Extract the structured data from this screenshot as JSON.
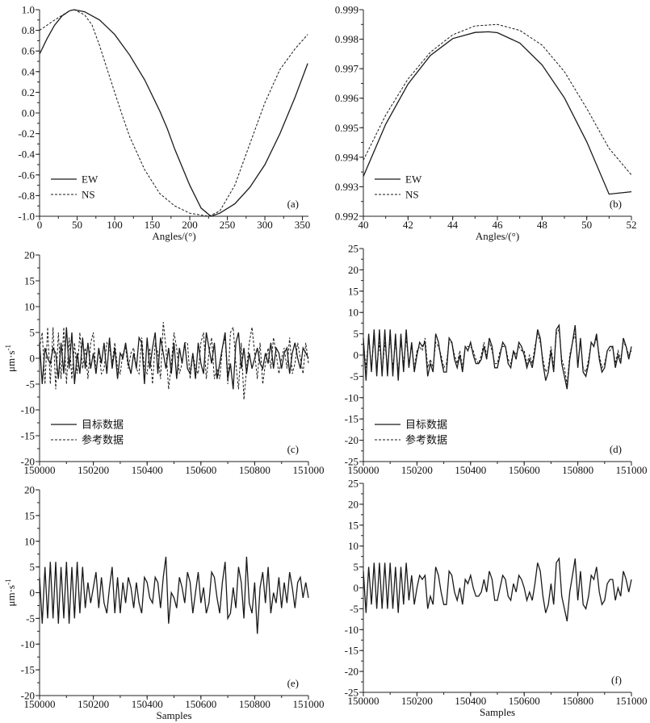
{
  "chart_data": [
    {
      "id": "a",
      "type": "line",
      "panel_label": "(a)",
      "xlabel": "Angles/(°)",
      "ylabel": "",
      "xlim": [
        0,
        358
      ],
      "ylim": [
        -1.0,
        1.0
      ],
      "xticks": [
        0,
        50,
        100,
        150,
        200,
        250,
        300,
        350
      ],
      "xminor": 25,
      "yticks": [
        -1.0,
        -0.8,
        -0.6,
        -0.4,
        -0.2,
        0.0,
        0.2,
        0.4,
        0.6,
        0.8,
        1.0
      ],
      "yminor": 0.1,
      "ydec": 1,
      "legend": "bottom-left",
      "series": [
        {
          "name": "EW",
          "style": "solid",
          "x": [
            0,
            10,
            20,
            30,
            40,
            46,
            60,
            80,
            100,
            120,
            140,
            160,
            170,
            180,
            200,
            215,
            228,
            240,
            260,
            280,
            300,
            320,
            340,
            357
          ],
          "y": [
            0.57,
            0.72,
            0.85,
            0.94,
            0.99,
            1.0,
            0.98,
            0.9,
            0.76,
            0.56,
            0.32,
            0.02,
            -0.15,
            -0.35,
            -0.7,
            -0.92,
            -1.0,
            -0.97,
            -0.88,
            -0.72,
            -0.5,
            -0.2,
            0.15,
            0.48
          ]
        },
        {
          "name": "NS",
          "style": "dashed",
          "x": [
            0,
            20,
            40,
            46,
            60,
            70,
            80,
            100,
            110,
            120,
            140,
            160,
            180,
            200,
            225,
            240,
            260,
            280,
            300,
            320,
            340,
            357
          ],
          "y": [
            0.8,
            0.9,
            0.99,
            1.0,
            0.95,
            0.85,
            0.65,
            0.2,
            -0.02,
            -0.23,
            -0.55,
            -0.78,
            -0.9,
            -0.97,
            -1.0,
            -0.95,
            -0.7,
            -0.3,
            0.1,
            0.42,
            0.62,
            0.76
          ]
        }
      ]
    },
    {
      "id": "b",
      "type": "line",
      "panel_label": "(b)",
      "xlabel": "Angles/(°)",
      "ylabel": "",
      "xlim": [
        40,
        52
      ],
      "ylim": [
        0.992,
        0.999
      ],
      "xticks": [
        40,
        42,
        44,
        46,
        48,
        50,
        52
      ],
      "xminor": 1,
      "yticks": [
        0.992,
        0.993,
        0.994,
        0.995,
        0.996,
        0.997,
        0.998,
        0.999
      ],
      "yminor": 0.0005,
      "ydec": 3,
      "legend": "bottom-left",
      "series": [
        {
          "name": "EW",
          "style": "solid",
          "x": [
            40,
            41,
            42,
            43,
            44,
            45,
            45.6,
            46,
            47,
            48,
            49,
            50,
            51,
            52
          ],
          "y": [
            0.99335,
            0.99512,
            0.99648,
            0.99745,
            0.99802,
            0.99823,
            0.99825,
            0.99822,
            0.99787,
            0.99713,
            0.99601,
            0.99452,
            0.99275,
            0.99283
          ]
        },
        {
          "name": "NS",
          "style": "dashed",
          "x": [
            40,
            41,
            42,
            43,
            44,
            45,
            46,
            47,
            48,
            49,
            50,
            51,
            52
          ],
          "y": [
            0.9939,
            0.99543,
            0.99665,
            0.99756,
            0.99815,
            0.99845,
            0.9985,
            0.9983,
            0.9978,
            0.9969,
            0.99565,
            0.9943,
            0.9934
          ]
        }
      ]
    },
    {
      "id": "c",
      "type": "line",
      "panel_label": "(c)",
      "xlabel": "",
      "ylabel": "μm·s",
      "ylabel_sup": "-1",
      "xlim": [
        150000,
        151000
      ],
      "ylim": [
        -20,
        20
      ],
      "xticks": [
        150000,
        150200,
        150400,
        150600,
        150800,
        151000
      ],
      "xminor": 100,
      "yticks": [
        -20,
        -15,
        -10,
        -5,
        0,
        5,
        10,
        15,
        20
      ],
      "yminor": 2.5,
      "ydec": 0,
      "legend": "bottom-left",
      "x_start": 150000,
      "x_step": 10,
      "series": [
        {
          "name": "目标数据",
          "style": "solid",
          "y": [
            3,
            -5,
            2,
            0,
            -1,
            2,
            1,
            -4,
            3,
            -3,
            6,
            -2,
            5,
            -5,
            1,
            -3,
            4,
            -2,
            3,
            -2,
            1,
            -3,
            2,
            -1,
            3,
            -3,
            4,
            -2,
            2,
            -4,
            1,
            0,
            3,
            -1,
            -3,
            1,
            -2,
            4,
            3,
            -5,
            4,
            -2,
            2,
            5,
            -3,
            4,
            1,
            -2,
            2,
            -3,
            3,
            -4,
            2,
            -1,
            3,
            -2,
            -3,
            1,
            -4,
            3,
            -1,
            -3,
            5,
            2,
            -1,
            3,
            -4,
            -1,
            2,
            5,
            -4,
            -1,
            -6,
            3,
            5,
            -2,
            2,
            -3,
            1,
            -2,
            0,
            2,
            -1,
            -2,
            1,
            -1,
            3,
            -2,
            2,
            1,
            -2,
            1,
            2,
            -3,
            1,
            3,
            0,
            -2,
            2,
            1,
            0
          ]
        },
        {
          "name": "参考数据",
          "style": "dashed",
          "y": [
            2,
            5,
            -5,
            6,
            -5,
            6,
            -6,
            5,
            -4,
            6,
            -5,
            4,
            -4,
            3,
            -3,
            5,
            -2,
            2,
            -4,
            3,
            5,
            -3,
            2,
            -3,
            -2,
            3,
            2,
            -1,
            3,
            -2,
            -3,
            1,
            2,
            -2,
            1,
            2,
            -2,
            -3,
            4,
            -2,
            -3,
            2,
            -5,
            3,
            1,
            -4,
            7,
            2,
            -6,
            -1,
            5,
            2,
            -3,
            -1,
            3,
            3,
            -4,
            1,
            -2,
            -3,
            3,
            5,
            -4,
            1,
            4,
            -4,
            -2,
            -4,
            2,
            4,
            -5,
            5,
            6,
            -1,
            -6,
            3,
            -8,
            -2,
            3,
            6,
            1,
            -4,
            3,
            -5,
            -1,
            2,
            -2,
            4,
            1,
            -3,
            0,
            2,
            -2,
            4,
            -3,
            -1,
            3,
            0,
            -3,
            3,
            -1
          ]
        }
      ]
    },
    {
      "id": "d",
      "type": "line",
      "panel_label": "(d)",
      "xlabel": "",
      "ylabel": "",
      "xlim": [
        150000,
        151000
      ],
      "ylim": [
        -25,
        25
      ],
      "xticks": [
        150000,
        150200,
        150400,
        150600,
        150800,
        151000
      ],
      "xminor": 100,
      "yticks": [
        -25,
        -20,
        -15,
        -10,
        -5,
        0,
        5,
        10,
        15,
        20,
        25
      ],
      "yminor": 2.5,
      "ydec": 0,
      "legend": "bottom-left",
      "x_start": 150000,
      "x_step": 10,
      "series": [
        {
          "name": "目标数据",
          "style": "solid",
          "y": [
            4,
            -6,
            5,
            -4,
            6,
            -5,
            6,
            -5,
            6,
            -5,
            6,
            -5,
            5,
            -6,
            5,
            -4,
            6,
            -3,
            3,
            -4,
            0,
            3,
            2,
            3,
            -5,
            -2,
            -4,
            5,
            3,
            -1,
            -4,
            -4,
            4,
            3,
            -1,
            -3,
            0,
            -4,
            2,
            1,
            3,
            0,
            -2,
            -2,
            -1,
            2,
            -1,
            4,
            2,
            -3,
            -3,
            0,
            3,
            2,
            -2,
            -3,
            1,
            -1,
            3,
            2,
            0,
            -3,
            -1,
            -3,
            1,
            6,
            4,
            -2,
            -6,
            -4,
            1,
            -4,
            6,
            7,
            -2,
            -5,
            -8,
            -1,
            3,
            7,
            -3,
            4,
            -4,
            -5,
            -2,
            3,
            2,
            5,
            -1,
            -4,
            -3,
            1,
            2,
            2,
            -3,
            0,
            -2,
            4,
            2,
            -1,
            2
          ]
        },
        {
          "name": "参考数据",
          "style": "dashed",
          "y": [
            3,
            -3,
            4,
            -3,
            4,
            -3,
            3,
            -4,
            3,
            -3,
            4,
            -3,
            3,
            -4,
            3,
            -2,
            4,
            -2,
            2,
            -3,
            1,
            2,
            1,
            4,
            -3,
            -1,
            -3,
            3,
            2,
            0,
            -3,
            -2,
            3,
            3,
            0,
            -2,
            1,
            -3,
            2,
            2,
            2,
            1,
            -1,
            -2,
            0,
            3,
            0,
            3,
            1,
            -2,
            -2,
            1,
            2,
            2,
            -1,
            -2,
            1,
            0,
            2,
            1,
            1,
            -2,
            0,
            -2,
            2,
            5,
            3,
            -1,
            -4,
            -3,
            2,
            -3,
            5,
            6,
            -1,
            -3,
            -7,
            0,
            3,
            5,
            -2,
            3,
            -3,
            -4,
            -1,
            3,
            2,
            4,
            0,
            -3,
            -2,
            1,
            1,
            2,
            -2,
            1,
            -1,
            3,
            2,
            0,
            1
          ]
        }
      ]
    },
    {
      "id": "e",
      "type": "line",
      "panel_label": "(e)",
      "xlabel": "Samples",
      "ylabel": "μm·s",
      "ylabel_sup": "-1",
      "xlim": [
        150000,
        151000
      ],
      "ylim": [
        -20,
        20
      ],
      "xticks": [
        150000,
        150200,
        150400,
        150600,
        150800,
        151000
      ],
      "xminor": 100,
      "yticks": [
        -20,
        -15,
        -10,
        -5,
        0,
        5,
        10,
        15,
        20
      ],
      "yminor": 2.5,
      "ydec": 0,
      "legend": "none",
      "x_start": 150000,
      "x_step": 10,
      "series": [
        {
          "name": "",
          "style": "solid",
          "y": [
            3,
            -6,
            5,
            -5,
            6,
            -5,
            6,
            -6,
            5,
            -5,
            6,
            -6,
            5,
            -5,
            6,
            -4,
            5,
            -3,
            2,
            -2,
            1,
            4,
            -3,
            3,
            -2,
            -4,
            1,
            5,
            -4,
            3,
            -4,
            2,
            -2,
            3,
            1,
            -3,
            2,
            -2,
            -4,
            3,
            2,
            -1,
            -2,
            3,
            2,
            -3,
            3,
            7,
            -6,
            0,
            -1,
            -3,
            3,
            1,
            -2,
            4,
            2,
            -4,
            0,
            4,
            -2,
            1,
            -4,
            -2,
            4,
            3,
            -1,
            -4,
            2,
            6,
            -5,
            -4,
            1,
            -3,
            5,
            2,
            -5,
            7,
            -2,
            -4,
            2,
            -8,
            1,
            4,
            -2,
            5,
            -4,
            0,
            -2,
            3,
            -3,
            2,
            -2,
            4,
            1,
            -3,
            2,
            3,
            -1,
            2,
            -1
          ]
        }
      ]
    },
    {
      "id": "f",
      "type": "line",
      "panel_label": "(f)",
      "xlabel": "Samples",
      "ylabel": "",
      "xlim": [
        150000,
        151000
      ],
      "ylim": [
        -25,
        25
      ],
      "xticks": [
        150000,
        150200,
        150400,
        150600,
        150800,
        151000
      ],
      "xminor": 100,
      "yticks": [
        -25,
        -20,
        -15,
        -10,
        -5,
        0,
        5,
        10,
        15,
        20,
        25
      ],
      "yminor": 2.5,
      "ydec": 0,
      "legend": "none",
      "x_start": 150000,
      "x_step": 10,
      "series": [
        {
          "name": "",
          "style": "solid",
          "y": [
            4,
            -6,
            5,
            -4,
            6,
            -5,
            6,
            -5,
            6,
            -5,
            6,
            -5,
            5,
            -6,
            5,
            -4,
            6,
            -3,
            3,
            -4,
            0,
            3,
            2,
            3,
            -5,
            -2,
            -4,
            5,
            3,
            -1,
            -4,
            -4,
            4,
            3,
            -1,
            -3,
            0,
            -4,
            2,
            1,
            3,
            0,
            -2,
            -2,
            -1,
            2,
            -1,
            4,
            2,
            -3,
            -3,
            0,
            3,
            2,
            -2,
            -3,
            1,
            -1,
            3,
            2,
            0,
            -3,
            -1,
            -3,
            1,
            6,
            4,
            -2,
            -6,
            -4,
            1,
            -4,
            6,
            7,
            -2,
            -5,
            -8,
            -1,
            3,
            7,
            -3,
            4,
            -4,
            -5,
            -2,
            3,
            2,
            5,
            -1,
            -4,
            -3,
            1,
            2,
            2,
            -3,
            0,
            -2,
            4,
            2,
            -1,
            2
          ]
        }
      ]
    }
  ]
}
